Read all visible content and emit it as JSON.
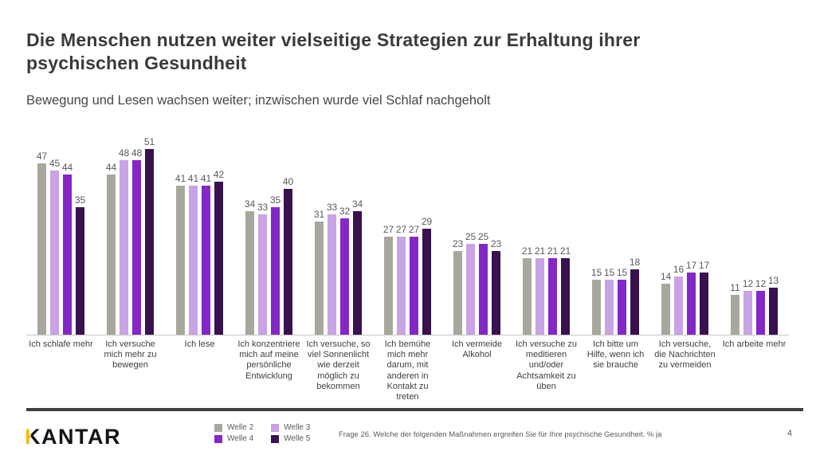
{
  "page": {
    "title": "Die Menschen nutzen weiter vielseitige Strategien zur Erhaltung ihrer psychischen Gesundheit",
    "subtitle": "Bewegung und Lesen wachsen weiter; inzwischen wurde viel Schlaf nachgeholt",
    "page_number": "4"
  },
  "footer": {
    "brand": "KANTAR",
    "question_note": "Frage 26. Welche der folgenden Maßnahmen ergreifen Sie für Ihre psychische Gesundheit. % ja"
  },
  "colors": {
    "welle2": "#a9a79c",
    "welle3": "#c9a3e5",
    "welle4": "#8527c6",
    "welle5": "#39114f",
    "brand_gold": "#edbd11",
    "axis_line": "#c6c6c6",
    "divider": "#3f3f3f",
    "value_label": "#595959"
  },
  "chart_data": {
    "type": "bar",
    "title": "",
    "xlabel": "",
    "ylabel": "% ja",
    "ylim": [
      0,
      55
    ],
    "grid": false,
    "legend_position": "bottom-left",
    "value_labels": true,
    "categories": [
      "Ich schlafe mehr",
      "Ich versuche mich mehr zu bewegen",
      "Ich lese",
      "Ich konzentriere mich auf meine persönliche Entwicklung",
      "Ich versuche, so viel Sonnenlicht wie derzeit möglich zu bekommen",
      "Ich bemühe mich mehr darum, mit anderen in Kontakt zu treten",
      "Ich vermeide Alkohol",
      "Ich versuche zu meditieren und/oder Achtsamkeit zu üben",
      "Ich bitte um Hilfe, wenn ich sie brauche",
      "Ich versuche, die Nachrichten zu vermeiden",
      "Ich arbeite mehr"
    ],
    "series": [
      {
        "name": "Welle 2",
        "color": "#a9a79c",
        "values": [
          47,
          44,
          41,
          34,
          31,
          27,
          23,
          21,
          15,
          14,
          11
        ]
      },
      {
        "name": "Welle 3",
        "color": "#c9a3e5",
        "values": [
          45,
          48,
          41,
          33,
          33,
          27,
          25,
          21,
          15,
          16,
          12
        ]
      },
      {
        "name": "Welle 4",
        "color": "#8527c6",
        "values": [
          44,
          48,
          41,
          35,
          32,
          27,
          25,
          21,
          15,
          17,
          12
        ]
      },
      {
        "name": "Welle 5",
        "color": "#39114f",
        "values": [
          35,
          51,
          42,
          40,
          34,
          29,
          23,
          21,
          18,
          17,
          13
        ]
      }
    ]
  }
}
